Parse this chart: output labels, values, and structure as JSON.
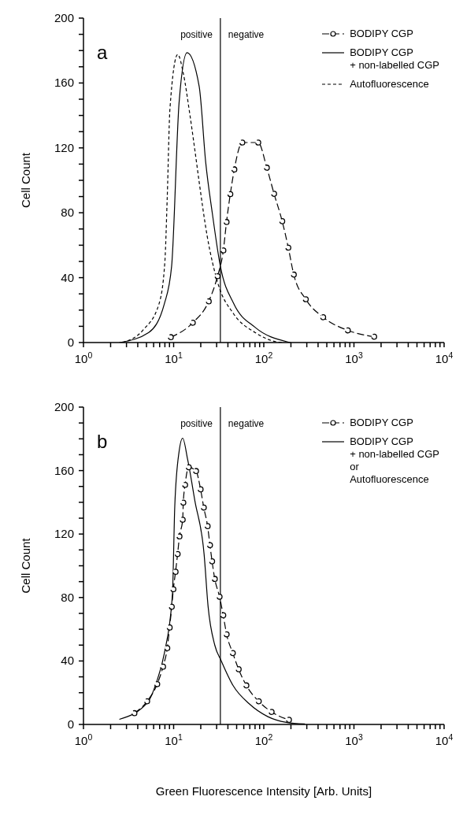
{
  "chart_data": [
    {
      "type": "line",
      "title": "a",
      "ylabel": "Cell Count",
      "log": "x",
      "legend": "top right",
      "xlim": [
        1,
        10000
      ],
      "ylim": [
        0,
        200
      ],
      "xticks": [
        {
          "value": 1,
          "label": "10$^{0}$"
        },
        {
          "value": 2,
          "label": null
        },
        {
          "value": 3,
          "label": null
        },
        {
          "value": 4,
          "label": null
        },
        {
          "value": 5,
          "label": null
        },
        {
          "value": 6,
          "label": null
        },
        {
          "value": 7,
          "label": null
        },
        {
          "value": 8,
          "label": null
        },
        {
          "value": 9,
          "label": null
        },
        {
          "value": 10,
          "label": "10$^{1}$"
        },
        {
          "value": 20,
          "label": null
        },
        {
          "value": 30,
          "label": null
        },
        {
          "value": 40,
          "label": null
        },
        {
          "value": 50,
          "label": null
        },
        {
          "value": 60,
          "label": null
        },
        {
          "value": 70,
          "label": null
        },
        {
          "value": 80,
          "label": null
        },
        {
          "value": 90,
          "label": null
        },
        {
          "value": 100,
          "label": "10$^{2}$"
        },
        {
          "value": 200,
          "label": null
        },
        {
          "value": 300,
          "label": null
        },
        {
          "value": 400,
          "label": null
        },
        {
          "value": 500,
          "label": null
        },
        {
          "value": 600,
          "label": null
        },
        {
          "value": 700,
          "label": null
        },
        {
          "value": 800,
          "label": null
        },
        {
          "value": 900,
          "label": null
        },
        {
          "value": 1000,
          "label": "10$^{3}$"
        },
        {
          "value": 2000,
          "label": null
        },
        {
          "value": 3000,
          "label": null
        },
        {
          "value": 4000,
          "label": null
        },
        {
          "value": 5000,
          "label": null
        },
        {
          "value": 6000,
          "label": null
        },
        {
          "value": 7000,
          "label": null
        },
        {
          "value": 8000,
          "label": null
        },
        {
          "value": 9000,
          "label": null
        },
        {
          "value": 10000,
          "label": "10$^{4}$"
        }
      ],
      "yticks": [
        0,
        {
          "value": 10,
          "label": null
        },
        {
          "value": 20,
          "label": null
        },
        {
          "value": 30,
          "label": null
        },
        40,
        {
          "value": 50,
          "label": null
        },
        {
          "value": 60,
          "label": null
        },
        {
          "value": 70,
          "label": null
        },
        80,
        {
          "value": 90,
          "label": null
        },
        {
          "value": 100,
          "label": null
        },
        {
          "value": 110,
          "label": null
        },
        120,
        {
          "value": 130,
          "label": null
        },
        {
          "value": 140,
          "label": null
        },
        {
          "value": 150,
          "label": null
        },
        160,
        {
          "value": 170,
          "label": null
        },
        {
          "value": 180,
          "label": null
        },
        {
          "value": 190,
          "label": null
        },
        200
      ],
      "ref_lines": [
        {
          "axis": "x",
          "value": 33,
          "color": "#000000",
          "line_style": "solid"
        }
      ],
      "annotations": [
        "positive",
        "negative"
      ],
      "series": [
        {
          "name": "BODIPY CGP",
          "color": "#000000",
          "line_style": "dashed",
          "marker": "circle",
          "x": [
            9.3,
            16.3,
            24.5,
            30.7,
            35.6,
            38.6,
            42.5,
            47.1,
            57.7,
            86.7,
            108,
            130,
            160,
            187,
            215,
            292,
            455,
            855,
            1675
          ],
          "values": [
            3.3,
            12.2,
            25.4,
            40.9,
            56.8,
            74.3,
            91.5,
            106.7,
            123.3,
            123.3,
            107.8,
            91.7,
            74.8,
            58.5,
            41.9,
            26.7,
            15.6,
            7.5,
            3.6
          ]
        },
        {
          "name": "BODIPY CGP\n+ non-labelled CGP",
          "color": "#000000",
          "line_style": "solid",
          "marker": "none",
          "x": [
            2.5,
            5.3,
            7.9,
            9.5,
            11.5,
            14.1,
            19.2,
            22.7,
            26.9,
            33,
            46.4,
            80,
            181,
            200
          ],
          "values": [
            0,
            6.2,
            24,
            47,
            148,
            178.7,
            158,
            111,
            79.5,
            47,
            24,
            9.4,
            0.5,
            0
          ]
        },
        {
          "name": "Autofluorescence",
          "color": "#000000",
          "line_style": "dotted",
          "marker": "none",
          "x": [
            2.7,
            4.6,
            6.9,
            8,
            8.5,
            9.1,
            11.1,
            12.8,
            15.1,
            17.3,
            19.2,
            23.5,
            30.8,
            46.4,
            80,
            137,
            160
          ],
          "values": [
            0,
            7.8,
            24,
            50,
            90,
            144,
            177.6,
            166,
            141,
            117.6,
            99,
            66,
            37,
            17.6,
            6.2,
            0.5,
            0
          ]
        }
      ]
    },
    {
      "type": "line",
      "title": "b",
      "ylabel": "Cell Count",
      "xlabel": "Green Fluorescence Intensity [Arb. Units]",
      "log": "x",
      "legend": "top right",
      "xlim": [
        1,
        10000
      ],
      "ylim": [
        0,
        200
      ],
      "xticks": [
        {
          "value": 1,
          "label": "10$^{0}$"
        },
        {
          "value": 2,
          "label": null
        },
        {
          "value": 3,
          "label": null
        },
        {
          "value": 4,
          "label": null
        },
        {
          "value": 5,
          "label": null
        },
        {
          "value": 6,
          "label": null
        },
        {
          "value": 7,
          "label": null
        },
        {
          "value": 8,
          "label": null
        },
        {
          "value": 9,
          "label": null
        },
        {
          "value": 10,
          "label": "10$^{1}$"
        },
        {
          "value": 20,
          "label": null
        },
        {
          "value": 30,
          "label": null
        },
        {
          "value": 40,
          "label": null
        },
        {
          "value": 50,
          "label": null
        },
        {
          "value": 60,
          "label": null
        },
        {
          "value": 70,
          "label": null
        },
        {
          "value": 80,
          "label": null
        },
        {
          "value": 90,
          "label": null
        },
        {
          "value": 100,
          "label": "10$^{2}$"
        },
        {
          "value": 200,
          "label": null
        },
        {
          "value": 300,
          "label": null
        },
        {
          "value": 400,
          "label": null
        },
        {
          "value": 500,
          "label": null
        },
        {
          "value": 600,
          "label": null
        },
        {
          "value": 700,
          "label": null
        },
        {
          "value": 800,
          "label": null
        },
        {
          "value": 900,
          "label": null
        },
        {
          "value": 1000,
          "label": "10$^{3}$"
        },
        {
          "value": 2000,
          "label": null
        },
        {
          "value": 3000,
          "label": null
        },
        {
          "value": 4000,
          "label": null
        },
        {
          "value": 5000,
          "label": null
        },
        {
          "value": 6000,
          "label": null
        },
        {
          "value": 7000,
          "label": null
        },
        {
          "value": 8000,
          "label": null
        },
        {
          "value": 9000,
          "label": null
        },
        {
          "value": 10000,
          "label": "10$^{4}$"
        }
      ],
      "yticks": [
        0,
        {
          "value": 10,
          "label": null
        },
        {
          "value": 20,
          "label": null
        },
        {
          "value": 30,
          "label": null
        },
        40,
        {
          "value": 50,
          "label": null
        },
        {
          "value": 60,
          "label": null
        },
        {
          "value": 70,
          "label": null
        },
        80,
        {
          "value": 90,
          "label": null
        },
        {
          "value": 100,
          "label": null
        },
        {
          "value": 110,
          "label": null
        },
        120,
        {
          "value": 130,
          "label": null
        },
        {
          "value": 140,
          "label": null
        },
        {
          "value": 150,
          "label": null
        },
        160,
        {
          "value": 170,
          "label": null
        },
        {
          "value": 180,
          "label": null
        },
        {
          "value": 190,
          "label": null
        },
        200
      ],
      "ref_lines": [
        {
          "axis": "x",
          "value": 33,
          "color": "#000000",
          "line_style": "solid"
        }
      ],
      "annotations": [
        "positive",
        "negative"
      ],
      "series": [
        {
          "name": "BODIPY CGP",
          "color": "#000000",
          "line_style": "dashed",
          "marker": "circle",
          "x": [
            3.67,
            5.08,
            6.57,
            7.63,
            8.5,
            9.03,
            9.53,
            9.93,
            10.5,
            11.07,
            11.6,
            12.6,
            12.8,
            13.4,
            14.7,
            17.7,
            19.9,
            21.6,
            23.8,
            25.3,
            26.7,
            28.6,
            32.3,
            35.5,
            38.7,
            45.3,
            52.6,
            64,
            87.9,
            122,
            190
          ],
          "values": [
            7.1,
            14.6,
            25.4,
            36.4,
            48.1,
            61.1,
            74.2,
            85.2,
            96.2,
            107.4,
            118.5,
            129,
            139.8,
            151,
            162.1,
            159.7,
            148.2,
            136.7,
            125,
            113,
            102.8,
            91.7,
            80.5,
            68.8,
            56.8,
            45,
            34.8,
            24.6,
            14.6,
            7.9,
            2.9
          ]
        },
        {
          "name": "BODIPY CGP\n+ non-labelled CGP\nor\nAutofluorescence",
          "color": "#000000",
          "line_style": "solid",
          "marker": "none",
          "x": [
            2.5,
            5.25,
            6.4,
            7.9,
            9.7,
            10.3,
            11.5,
            12.6,
            14.3,
            17.2,
            21.8,
            24.1,
            28.6,
            33.8,
            45.9,
            68.9,
            111,
            178,
            286
          ],
          "values": [
            3.2,
            14.6,
            26,
            45,
            82,
            137.6,
            172,
            180.4,
            167,
            141,
            107,
            74.5,
            50,
            40,
            24.3,
            13,
            4.9,
            1.3,
            0.3
          ]
        }
      ]
    }
  ]
}
